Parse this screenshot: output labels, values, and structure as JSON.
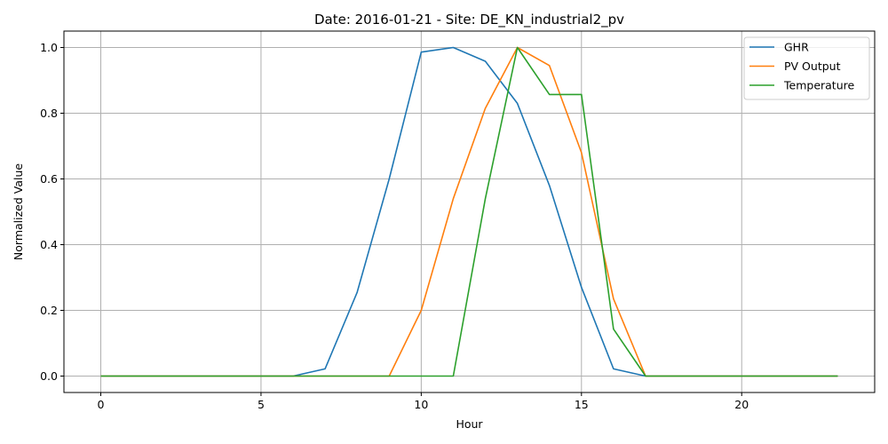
{
  "chart_data": {
    "type": "line",
    "title": "Date: 2016-01-21 - Site: DE_KN_industrial2_pv",
    "xlabel": "Hour",
    "ylabel": "Normalized Value",
    "xlim": [
      -1.15,
      24.15
    ],
    "ylim": [
      -0.05,
      1.05
    ],
    "xticks": [
      0,
      5,
      10,
      15,
      20
    ],
    "xtick_labels": [
      "0",
      "5",
      "10",
      "15",
      "20"
    ],
    "yticks": [
      0.0,
      0.2,
      0.4,
      0.6,
      0.8,
      1.0
    ],
    "ytick_labels": [
      "0.0",
      "0.2",
      "0.4",
      "0.6",
      "0.8",
      "1.0"
    ],
    "grid": true,
    "legend_position": "top-right",
    "x": [
      0,
      1,
      2,
      3,
      4,
      5,
      6,
      7,
      8,
      9,
      10,
      11,
      12,
      13,
      14,
      15,
      16,
      17,
      18,
      19,
      20,
      21,
      22,
      23
    ],
    "series": [
      {
        "name": "GHR",
        "color": "#1f77b4",
        "values": [
          0,
          0,
          0,
          0,
          0,
          0,
          0,
          0.022,
          0.255,
          0.6,
          0.986,
          1.0,
          0.958,
          0.83,
          0.58,
          0.27,
          0.022,
          0,
          0,
          0,
          0,
          0,
          0,
          0
        ]
      },
      {
        "name": "PV Output",
        "color": "#ff7f0e",
        "values": [
          0,
          0,
          0,
          0,
          0,
          0,
          0,
          0,
          0,
          0,
          0.2,
          0.54,
          0.815,
          1.0,
          0.945,
          0.68,
          0.235,
          0,
          0,
          0,
          0,
          0,
          0,
          0
        ]
      },
      {
        "name": "Temperature",
        "color": "#2ca02c",
        "values": [
          0,
          0,
          0,
          0,
          0,
          0,
          0,
          0,
          0,
          0,
          0,
          0,
          0.54,
          1.0,
          0.857,
          0.857,
          0.143,
          0,
          0,
          0,
          0,
          0,
          0,
          0
        ]
      }
    ]
  }
}
